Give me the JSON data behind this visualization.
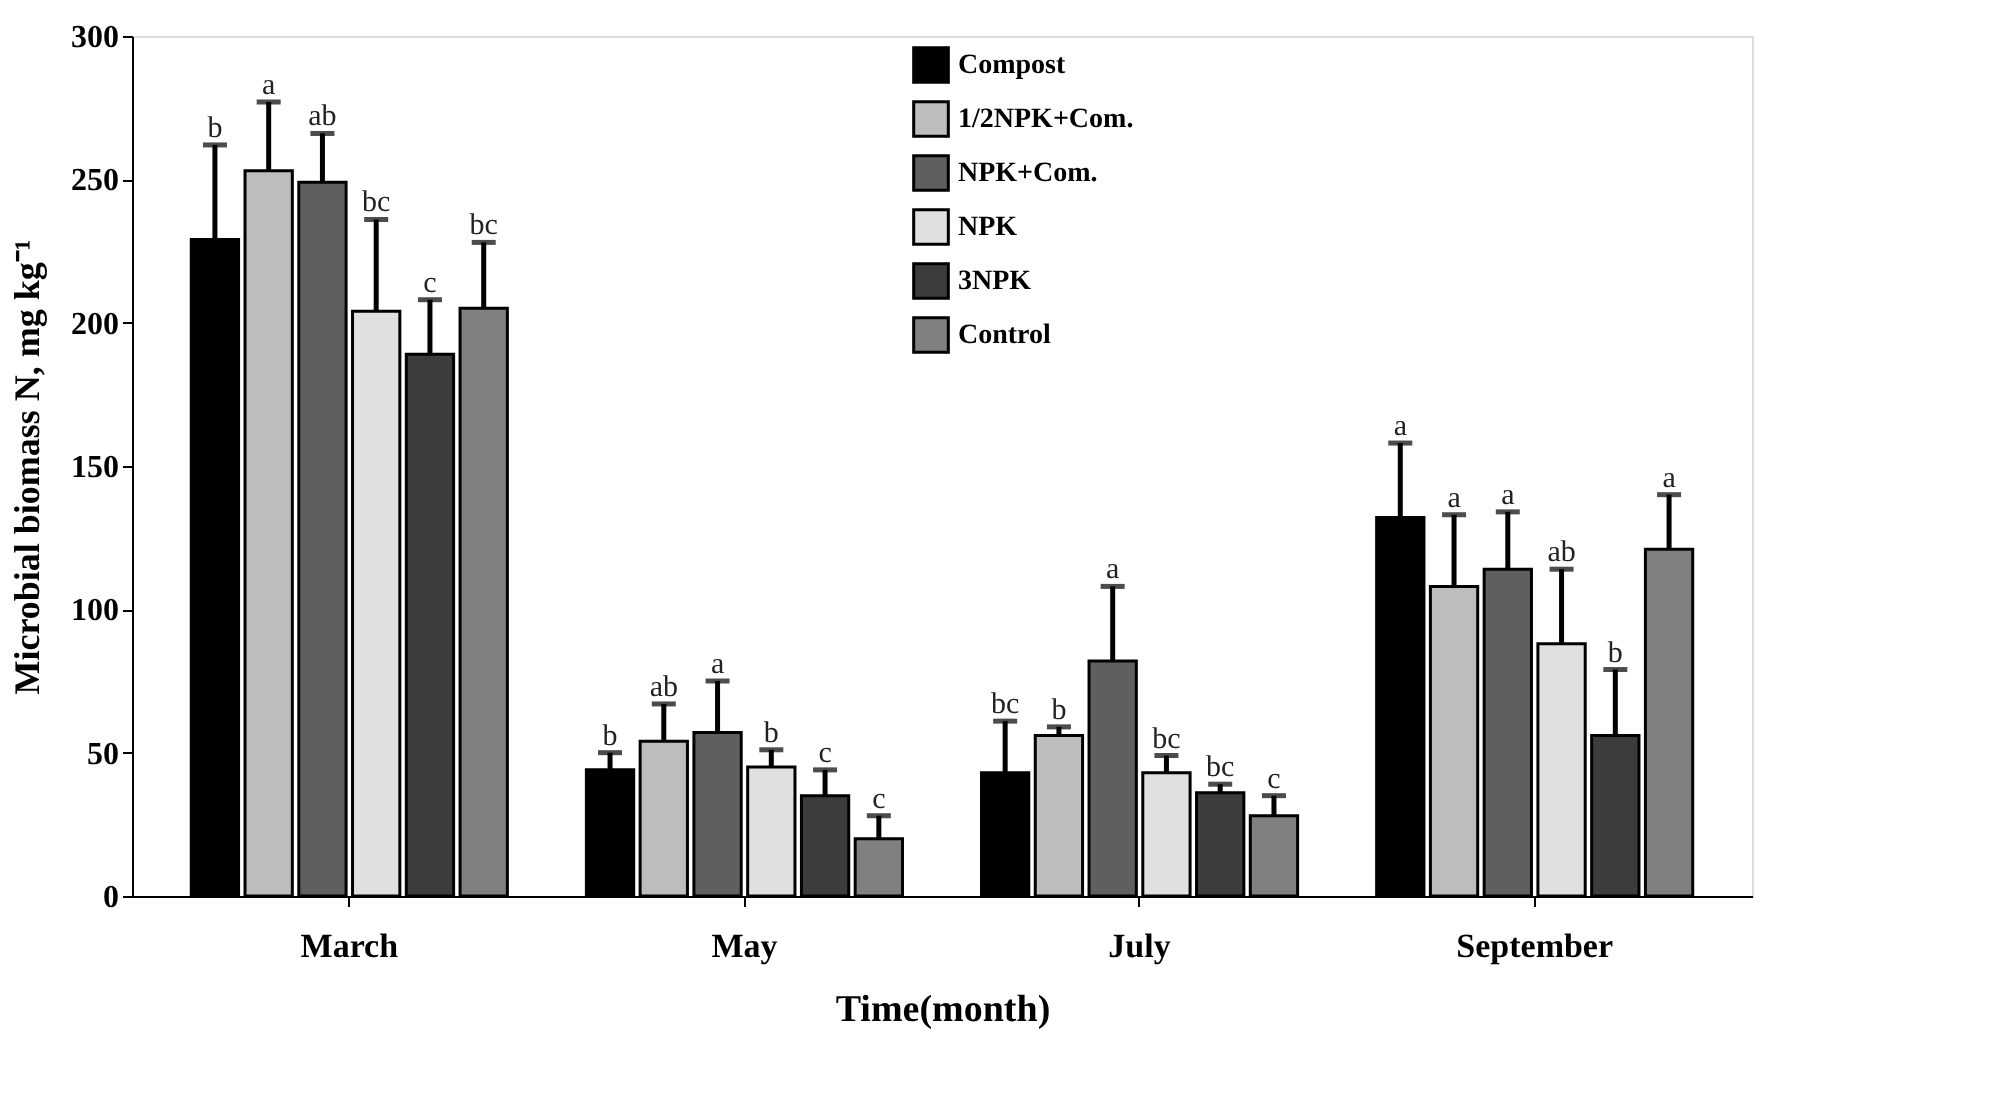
{
  "chart_data": {
    "type": "bar",
    "xlabel": "Time(month)",
    "ylabel": "Microbial biomass N, mg kg⁻¹",
    "categories": [
      "March",
      "May",
      "July",
      "September"
    ],
    "series": [
      {
        "name": "Compost",
        "color": "#000000",
        "values": [
          229,
          44,
          43,
          132
        ],
        "errors": [
          33,
          6,
          18,
          26
        ],
        "value_labels": [
          "b",
          "b",
          "bc",
          "a"
        ]
      },
      {
        "name": "1/2NPK+Com.",
        "color": "#bdbdbd",
        "values": [
          253,
          54,
          56,
          108
        ],
        "errors": [
          24,
          13,
          3,
          25
        ],
        "value_labels": [
          "a",
          "ab",
          "b",
          "a"
        ]
      },
      {
        "name": "NPK+Com.",
        "color": "#5f5f5f",
        "values": [
          249,
          57,
          82,
          114
        ],
        "errors": [
          17,
          18,
          26,
          20
        ],
        "value_labels": [
          "ab",
          "a",
          "a",
          "a"
        ]
      },
      {
        "name": "NPK",
        "color": "#e0e0e0",
        "values": [
          204,
          45,
          43,
          88
        ],
        "errors": [
          32,
          6,
          6,
          26
        ],
        "value_labels": [
          "bc",
          "b",
          "bc",
          "ab"
        ]
      },
      {
        "name": "3NPK",
        "color": "#3c3c3c",
        "values": [
          189,
          35,
          36,
          56
        ],
        "errors": [
          19,
          9,
          3,
          23
        ],
        "value_labels": [
          "c",
          "c",
          "bc",
          "b"
        ]
      },
      {
        "name": "Control",
        "color": "#808080",
        "values": [
          205,
          20,
          28,
          121
        ],
        "errors": [
          23,
          8,
          7,
          19
        ],
        "value_labels": [
          "bc",
          "c",
          "c",
          "a"
        ]
      }
    ],
    "ylim": [
      0,
      300
    ],
    "yticks": [
      0,
      50,
      100,
      150,
      200,
      250,
      300
    ],
    "grid": false,
    "legend": "top right"
  }
}
